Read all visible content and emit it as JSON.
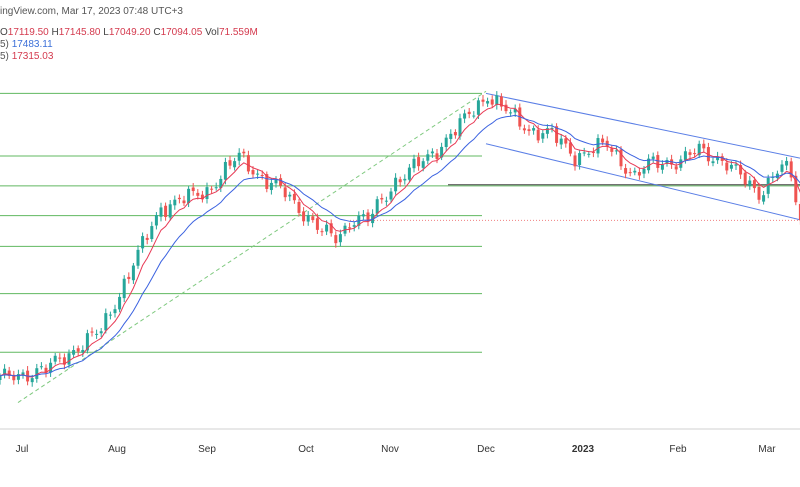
{
  "header": {
    "source": "ingView.com, Mar 17, 2023 07:48 UTC+3",
    "ohlc_prefix": "O",
    "open": "17119.50",
    "high_prefix": "H",
    "high": "17145.80",
    "low_prefix": "L",
    "low": "17049.20",
    "close_prefix": "C",
    "close": "17094.05",
    "vol_prefix": "Vol",
    "volume": "71.559M",
    "ema_slow_prefix": "5)",
    "ema_slow_value": "17483.11",
    "ema_fast_prefix": "5)",
    "ema_fast_value": "17315.03"
  },
  "colors": {
    "bull": "#26a69a",
    "bear": "#ef5350",
    "ema_fast": "#e83a55",
    "ema_slow": "#3b62e0",
    "channel": "#5b7fe6",
    "horizontal_levels": "#61b861",
    "trendline_dashed": "#7fc97f",
    "support_line": "#444444",
    "price_line": "#f08080"
  },
  "chart_data": {
    "type": "candlestick",
    "x_axis_labels": [
      "Jul",
      "Aug",
      "Sep",
      "Oct",
      "Nov",
      "Dec",
      "2023",
      "Feb",
      "Mar"
    ],
    "ylim": [
      15150,
      18850
    ],
    "series": [
      {
        "kind": "candles",
        "count": 175,
        "start_close": 15500,
        "last_close": 17094.05
      },
      {
        "kind": "ema_fast",
        "last_value": 17315.03
      },
      {
        "kind": "ema_slow",
        "last_value": 17483.11
      }
    ],
    "horizontal_levels": [
      18330,
      17720,
      17430,
      17140,
      16840,
      16380,
      15810
    ],
    "support_level": 17440,
    "last_price": 17094.05,
    "close_path": [
      [
        0,
        15550
      ],
      [
        10,
        15640
      ],
      [
        22,
        16020
      ],
      [
        35,
        17220
      ],
      [
        45,
        17380
      ],
      [
        52,
        17720
      ],
      [
        58,
        17470
      ],
      [
        62,
        17360
      ],
      [
        70,
        16980
      ],
      [
        73,
        16920
      ],
      [
        77,
        17120
      ],
      [
        80,
        17090
      ],
      [
        86,
        17480
      ],
      [
        93,
        17700
      ],
      [
        100,
        18020
      ],
      [
        106,
        18320
      ],
      [
        111,
        18120
      ],
      [
        115,
        17980
      ],
      [
        120,
        17930
      ],
      [
        125,
        17720
      ],
      [
        132,
        17830
      ],
      [
        138,
        17520
      ],
      [
        142,
        17660
      ],
      [
        148,
        17670
      ],
      [
        152,
        17780
      ],
      [
        157,
        17680
      ],
      [
        165,
        17360
      ],
      [
        170,
        17620
      ],
      [
        172,
        17520
      ],
      [
        174,
        17094
      ]
    ]
  }
}
